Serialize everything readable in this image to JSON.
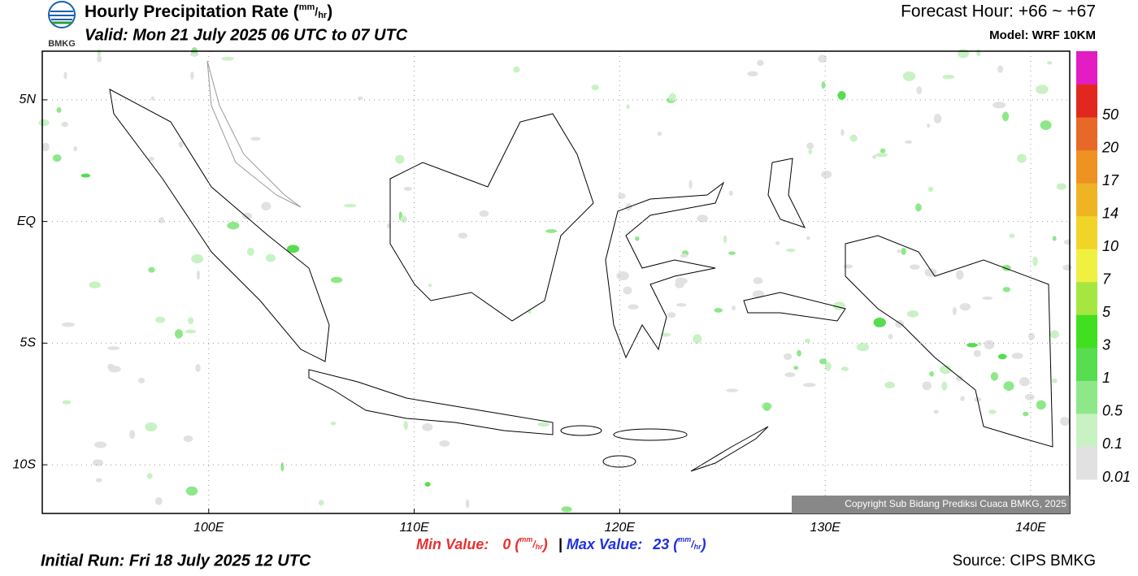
{
  "header": {
    "title": "Hourly Precipitation Rate",
    "valid": "Valid: Mon 21 July 2025 06 UTC to 07 UTC",
    "logo": "BMKG",
    "forecast_hour": "Forecast Hour: +66 ~ +67",
    "model": "Model: WRF 10KM"
  },
  "unit": {
    "open": "(",
    "num": "mm",
    "slash": "/",
    "den": "hr",
    "close": ")"
  },
  "map": {
    "xlim": [
      91.9,
      141.9
    ],
    "ylim": [
      -12,
      7
    ],
    "xticks": [
      {
        "value": 100,
        "label": "100E"
      },
      {
        "value": 110,
        "label": "110E"
      },
      {
        "value": 120,
        "label": "120E"
      },
      {
        "value": 130,
        "label": "130E"
      },
      {
        "value": 140,
        "label": "140E"
      }
    ],
    "yticks": [
      {
        "value": 5,
        "label": "5N"
      },
      {
        "value": 0,
        "label": "EQ"
      },
      {
        "value": -5,
        "label": "5S"
      },
      {
        "value": -10,
        "label": "10S"
      }
    ],
    "grid": true,
    "copyright": "Copyright Sub Bidang Prediksi Cuaca BMKG, 2025"
  },
  "colorbar": {
    "levels": [
      0.01,
      0.1,
      0.5,
      1,
      3,
      5,
      7,
      10,
      14,
      17,
      20,
      50
    ],
    "colors": [
      "#e1e1e1",
      "#c8f2c3",
      "#8ee88a",
      "#58dc50",
      "#40e020",
      "#a6e640",
      "#f0f040",
      "#f0d428",
      "#eeb424",
      "#ee9222",
      "#e8682a",
      "#e2281e",
      "#e41cc4"
    ]
  },
  "footer": {
    "min_label": "Min Value:",
    "min_value": 0,
    "separator": "|",
    "max_label": "Max Value:",
    "max_value": 23,
    "initial_run": "Initial Run: Fri 18 July 2025 12 UTC",
    "source": "Source: CIPS BMKG"
  }
}
